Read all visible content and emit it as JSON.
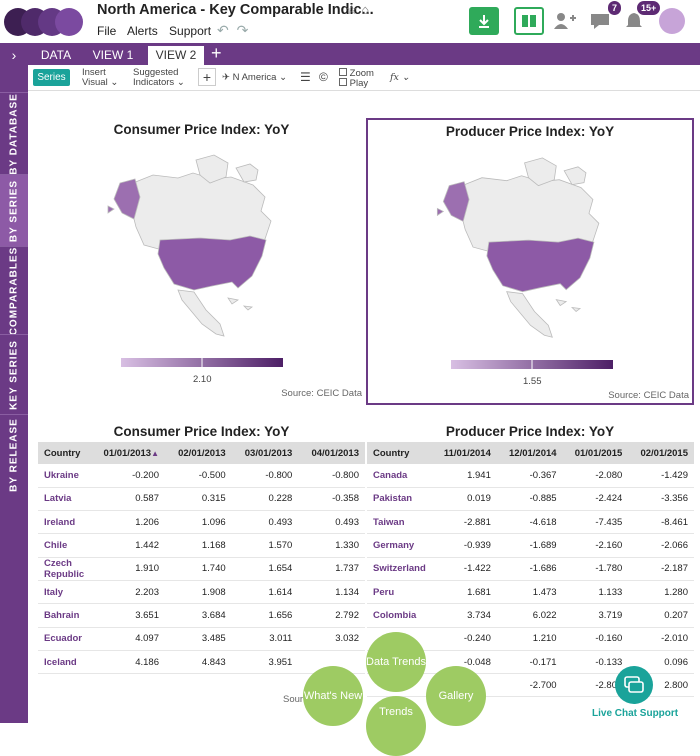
{
  "app": {
    "title": "North America - Key Comparable Indic...",
    "menu": [
      "File",
      "Alerts",
      "Support"
    ],
    "notifications_count": "7",
    "alerts_count": "15+",
    "colors": {
      "brand": "#6b3a85",
      "teal": "#1aa39a",
      "bubble": "#9ecb63"
    }
  },
  "leftnav": {
    "items": [
      "BY DATABASE",
      "BY SERIES",
      "COMPARABLES",
      "KEY SERIES",
      "BY RELEASE"
    ],
    "active": "BY SERIES"
  },
  "tabs": [
    "DATA",
    "VIEW 1",
    "VIEW 2"
  ],
  "active_tab": "VIEW 2",
  "toolbar": {
    "series": "Series",
    "insert_visual_1": "Insert",
    "insert_visual_2": "Visual",
    "suggested_1": "Suggested",
    "suggested_2": "Indicators",
    "region": "N America",
    "zoom": "Zoom",
    "play": "Play",
    "fx": "fx"
  },
  "maps": [
    {
      "title": "Consumer Price Index: YoY",
      "legend_value": "2.10",
      "source": "Source: CEIC Data"
    },
    {
      "title": "Producer Price Index: YoY",
      "legend_value": "1.55",
      "source": "Source: CEIC Data"
    }
  ],
  "tables": [
    {
      "title": "Consumer Price Index: YoY",
      "headers": [
        "Country",
        "01/01/2013",
        "02/01/2013",
        "03/01/2013",
        "04/01/2013"
      ],
      "rows": [
        [
          "Ukraine",
          "-0.200",
          "-0.500",
          "-0.800",
          "-0.800"
        ],
        [
          "Latvia",
          "0.587",
          "0.315",
          "0.228",
          "-0.358"
        ],
        [
          "Ireland",
          "1.206",
          "1.096",
          "0.493",
          "0.493"
        ],
        [
          "Chile",
          "1.442",
          "1.168",
          "1.570",
          "1.330"
        ],
        [
          "Czech Republic",
          "1.910",
          "1.740",
          "1.654",
          "1.737"
        ],
        [
          "Italy",
          "2.203",
          "1.908",
          "1.614",
          "1.134"
        ],
        [
          "Bahrain",
          "3.651",
          "3.684",
          "1.656",
          "2.792"
        ],
        [
          "Ecuador",
          "4.097",
          "3.485",
          "3.011",
          "3.032"
        ],
        [
          "Iceland",
          "4.186",
          "4.843",
          "3.951",
          ""
        ]
      ],
      "source": "Sour"
    },
    {
      "title": "Producer Price Index: YoY",
      "headers": [
        "Country",
        "11/01/2014",
        "12/01/2014",
        "01/01/2015",
        "02/01/2015"
      ],
      "rows": [
        [
          "Canada",
          "1.941",
          "-0.367",
          "-2.080",
          "-1.429"
        ],
        [
          "Pakistan",
          "0.019",
          "-0.885",
          "-2.424",
          "-3.356"
        ],
        [
          "Taiwan",
          "-2.881",
          "-4.618",
          "-7.435",
          "-8.461"
        ],
        [
          "Germany",
          "-0.939",
          "-1.689",
          "-2.160",
          "-2.066"
        ],
        [
          "Switzerland",
          "-1.422",
          "-1.686",
          "-1.780",
          "-2.187"
        ],
        [
          "Peru",
          "1.681",
          "1.473",
          "1.133",
          "1.280"
        ],
        [
          "Colombia",
          "3.734",
          "6.022",
          "3.719",
          "0.207"
        ],
        [
          "",
          "-0.240",
          "1.210",
          "-0.160",
          "-2.010"
        ],
        [
          "",
          "-0.048",
          "-0.171",
          "-0.133",
          "0.096"
        ],
        [
          "",
          "",
          "-2.700",
          "-2.800",
          "2.800"
        ]
      ],
      "source": "Source: CEIC Data"
    }
  ],
  "bubbles": {
    "data_trends": "Data Trends",
    "whats_new": "What's New",
    "gallery": "Gallery",
    "trends": "Trends"
  },
  "chat_label": "Live Chat Support"
}
